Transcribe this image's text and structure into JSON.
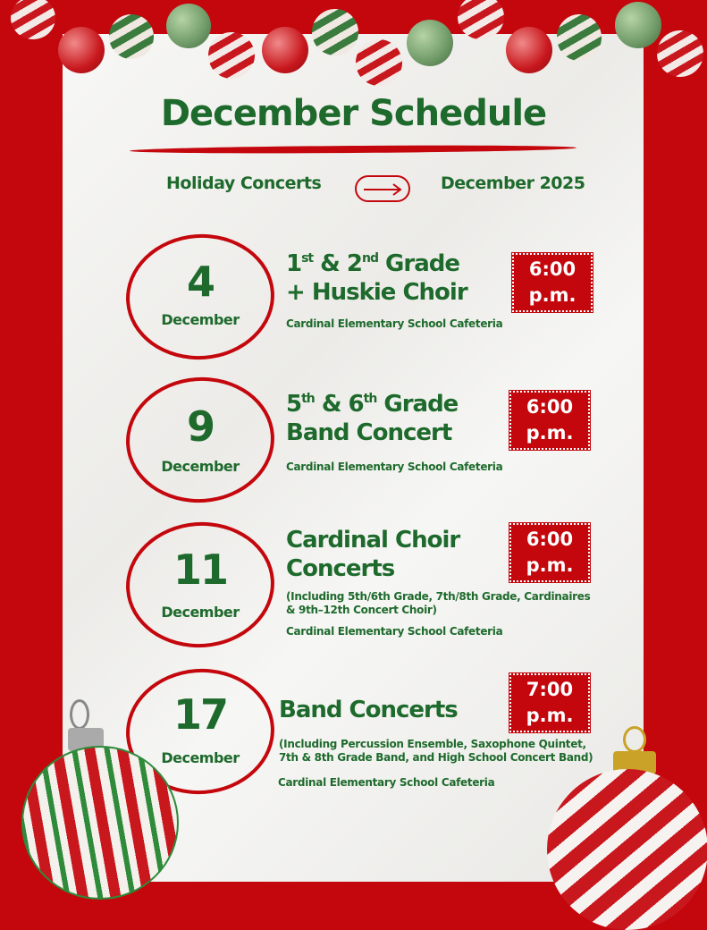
{
  "header": {
    "title": "December Schedule",
    "left": "Holiday Concerts",
    "right": "December 2025",
    "arrow_icon": "right-arrow-icon"
  },
  "colors": {
    "red": "#c4070d",
    "green": "#1e6a2c",
    "paper": "#f3f3f1"
  },
  "events": [
    {
      "day": "4",
      "month": "December",
      "t1a": "1",
      "t1s1": "st",
      "t1b": " & 2",
      "t1s2": "nd",
      "t1c": " Grade",
      "t2": "+ Huskie Choir",
      "location": "Cardinal Elementary School Cafeteria",
      "time1": "6:00",
      "time2": "p.m."
    },
    {
      "day": "9",
      "month": "December",
      "t1a": "5",
      "t1s1": "th",
      "t1b": " & 6",
      "t1s2": "th",
      "t1c": " Grade",
      "t2": "Band Concert",
      "location": "Cardinal Elementary School Cafeteria",
      "time1": "6:00",
      "time2": "p.m."
    },
    {
      "day": "11",
      "month": "December",
      "t1": "Cardinal Choir",
      "t2": "Concerts",
      "desc1": "(Including 5th/6th Grade, 7th/8th Grade, Cardinaires",
      "desc2": "& 9th–12th Concert Choir)",
      "location": "Cardinal Elementary School Cafeteria",
      "time1": "6:00",
      "time2": "p.m."
    },
    {
      "day": "17",
      "month": "December",
      "t1": "Band Concerts",
      "desc1": "(Including Percussion Ensemble, Saxophone Quintet,",
      "desc2": "7th & 8th Grade Band, and High School Concert Band)",
      "location": "Cardinal Elementary School Cafeteria",
      "time1": "7:00",
      "time2": "p.m."
    }
  ]
}
